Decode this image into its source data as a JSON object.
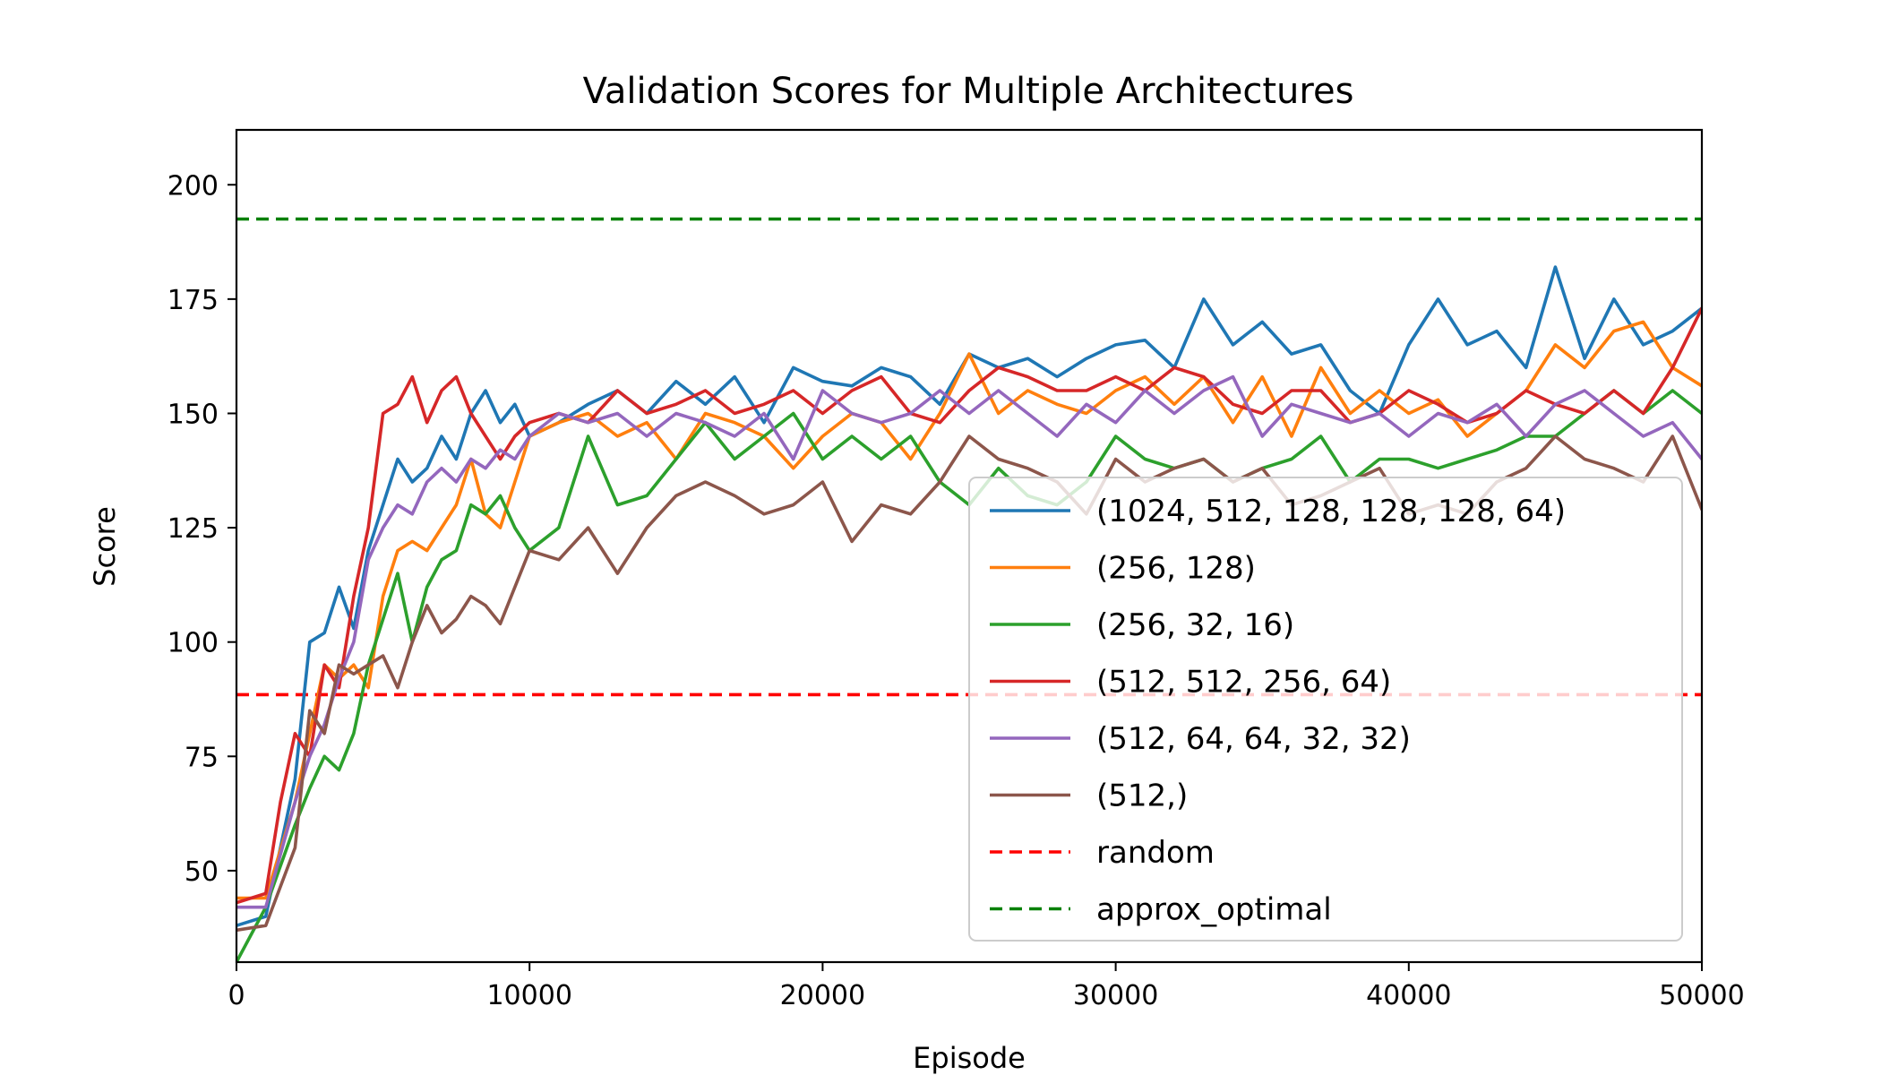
{
  "chart_data": {
    "type": "line",
    "title": "Validation Scores for Multiple Architectures",
    "xlabel": "Episode",
    "ylabel": "Score",
    "xlim": [
      0,
      50000
    ],
    "ylim": [
      30,
      212
    ],
    "xticks": [
      0,
      10000,
      20000,
      30000,
      40000,
      50000
    ],
    "yticks": [
      50,
      75,
      100,
      125,
      150,
      175,
      200
    ],
    "grid": false,
    "legend_position": "center-right",
    "series": [
      {
        "name": "(1024, 512, 128, 128, 128, 64)",
        "color": "#1f77b4",
        "style": "solid",
        "x": [
          0,
          1000,
          2000,
          2500,
          3000,
          3500,
          4000,
          4500,
          5000,
          5500,
          6000,
          6500,
          7000,
          7500,
          8000,
          8500,
          9000,
          9500,
          10000,
          11000,
          12000,
          13000,
          14000,
          15000,
          16000,
          17000,
          18000,
          19000,
          20000,
          21000,
          22000,
          23000,
          24000,
          25000,
          26000,
          27000,
          28000,
          29000,
          30000,
          31000,
          32000,
          33000,
          34000,
          35000,
          36000,
          37000,
          38000,
          39000,
          40000,
          41000,
          42000,
          43000,
          44000,
          45000,
          46000,
          47000,
          48000,
          49000,
          50000
        ],
        "values": [
          38,
          40,
          70,
          100,
          102,
          112,
          103,
          120,
          130,
          140,
          135,
          138,
          145,
          140,
          150,
          155,
          148,
          152,
          145,
          148,
          152,
          155,
          150,
          157,
          152,
          158,
          148,
          160,
          157,
          156,
          160,
          158,
          152,
          163,
          160,
          162,
          158,
          162,
          165,
          166,
          160,
          175,
          165,
          170,
          163,
          165,
          155,
          150,
          165,
          175,
          165,
          168,
          160,
          182,
          162,
          175,
          165,
          168,
          173
        ]
      },
      {
        "name": "(256, 128)",
        "color": "#ff7f0e",
        "style": "solid",
        "x": [
          0,
          1000,
          2000,
          2500,
          3000,
          3500,
          4000,
          4500,
          5000,
          5500,
          6000,
          6500,
          7000,
          7500,
          8000,
          8500,
          9000,
          9500,
          10000,
          11000,
          12000,
          13000,
          14000,
          15000,
          16000,
          17000,
          18000,
          19000,
          20000,
          21000,
          22000,
          23000,
          24000,
          25000,
          26000,
          27000,
          28000,
          29000,
          30000,
          31000,
          32000,
          33000,
          34000,
          35000,
          36000,
          37000,
          38000,
          39000,
          40000,
          41000,
          42000,
          43000,
          44000,
          45000,
          46000,
          47000,
          48000,
          49000,
          50000
        ],
        "values": [
          44,
          44,
          65,
          80,
          95,
          92,
          95,
          90,
          110,
          120,
          122,
          120,
          125,
          130,
          140,
          128,
          125,
          135,
          145,
          148,
          150,
          145,
          148,
          140,
          150,
          148,
          145,
          138,
          145,
          150,
          148,
          140,
          150,
          163,
          150,
          155,
          152,
          150,
          155,
          158,
          152,
          158,
          148,
          158,
          145,
          160,
          150,
          155,
          150,
          153,
          145,
          150,
          155,
          165,
          160,
          168,
          170,
          160,
          156
        ]
      },
      {
        "name": "(256, 32, 16)",
        "color": "#2ca02c",
        "style": "solid",
        "x": [
          0,
          1000,
          2000,
          2500,
          3000,
          3500,
          4000,
          4500,
          5000,
          5500,
          6000,
          6500,
          7000,
          7500,
          8000,
          8500,
          9000,
          9500,
          10000,
          11000,
          12000,
          13000,
          14000,
          15000,
          16000,
          17000,
          18000,
          19000,
          20000,
          21000,
          22000,
          23000,
          24000,
          25000,
          26000,
          27000,
          28000,
          29000,
          30000,
          31000,
          32000,
          33000,
          34000,
          35000,
          36000,
          37000,
          38000,
          39000,
          40000,
          41000,
          42000,
          43000,
          44000,
          45000,
          46000,
          47000,
          48000,
          49000,
          50000
        ],
        "values": [
          30,
          42,
          60,
          68,
          75,
          72,
          80,
          95,
          105,
          115,
          100,
          112,
          118,
          120,
          130,
          128,
          132,
          125,
          120,
          125,
          145,
          130,
          132,
          140,
          148,
          140,
          145,
          150,
          140,
          145,
          140,
          145,
          135,
          130,
          138,
          132,
          130,
          135,
          145,
          140,
          138,
          140,
          135,
          138,
          140,
          145,
          135,
          140,
          140,
          138,
          140,
          142,
          145,
          145,
          150,
          155,
          150,
          155,
          150
        ]
      },
      {
        "name": "(512, 512, 256, 64)",
        "color": "#d62728",
        "style": "solid",
        "x": [
          0,
          1000,
          1500,
          2000,
          2500,
          3000,
          3500,
          4000,
          4500,
          5000,
          5500,
          6000,
          6500,
          7000,
          7500,
          8000,
          8500,
          9000,
          9500,
          10000,
          11000,
          12000,
          13000,
          14000,
          15000,
          16000,
          17000,
          18000,
          19000,
          20000,
          21000,
          22000,
          23000,
          24000,
          25000,
          26000,
          27000,
          28000,
          29000,
          30000,
          31000,
          32000,
          33000,
          34000,
          35000,
          36000,
          37000,
          38000,
          39000,
          40000,
          41000,
          42000,
          43000,
          44000,
          45000,
          46000,
          47000,
          48000,
          49000,
          50000
        ],
        "values": [
          43,
          45,
          65,
          80,
          75,
          95,
          90,
          110,
          125,
          150,
          152,
          158,
          148,
          155,
          158,
          150,
          145,
          140,
          145,
          148,
          150,
          148,
          155,
          150,
          152,
          155,
          150,
          152,
          155,
          150,
          155,
          158,
          150,
          148,
          155,
          160,
          158,
          155,
          155,
          158,
          155,
          160,
          158,
          152,
          150,
          155,
          155,
          148,
          150,
          155,
          152,
          148,
          150,
          155,
          152,
          150,
          155,
          150,
          160,
          173
        ]
      },
      {
        "name": "(512, 64, 64, 32, 32)",
        "color": "#9467bd",
        "style": "solid",
        "x": [
          0,
          1000,
          2000,
          2500,
          3000,
          3500,
          4000,
          4500,
          5000,
          5500,
          6000,
          6500,
          7000,
          7500,
          8000,
          8500,
          9000,
          9500,
          10000,
          11000,
          12000,
          13000,
          14000,
          15000,
          16000,
          17000,
          18000,
          19000,
          20000,
          21000,
          22000,
          23000,
          24000,
          25000,
          26000,
          27000,
          28000,
          29000,
          30000,
          31000,
          32000,
          33000,
          34000,
          35000,
          36000,
          37000,
          38000,
          39000,
          40000,
          41000,
          42000,
          43000,
          44000,
          45000,
          46000,
          47000,
          48000,
          49000,
          50000
        ],
        "values": [
          42,
          42,
          65,
          75,
          82,
          92,
          100,
          118,
          125,
          130,
          128,
          135,
          138,
          135,
          140,
          138,
          142,
          140,
          145,
          150,
          148,
          150,
          145,
          150,
          148,
          145,
          150,
          140,
          155,
          150,
          148,
          150,
          155,
          150,
          155,
          150,
          145,
          152,
          148,
          155,
          150,
          155,
          158,
          145,
          152,
          150,
          148,
          150,
          145,
          150,
          148,
          152,
          145,
          152,
          155,
          150,
          145,
          148,
          140
        ]
      },
      {
        "name": "(512,)",
        "color": "#8c564b",
        "style": "solid",
        "x": [
          0,
          1000,
          2000,
          2500,
          3000,
          3500,
          4000,
          4500,
          5000,
          5500,
          6000,
          6500,
          7000,
          7500,
          8000,
          8500,
          9000,
          9500,
          10000,
          11000,
          12000,
          13000,
          14000,
          15000,
          16000,
          17000,
          18000,
          19000,
          20000,
          21000,
          22000,
          23000,
          24000,
          25000,
          26000,
          27000,
          28000,
          29000,
          30000,
          31000,
          32000,
          33000,
          34000,
          35000,
          36000,
          37000,
          38000,
          39000,
          40000,
          41000,
          42000,
          43000,
          44000,
          45000,
          46000,
          47000,
          48000,
          49000,
          50000
        ],
        "values": [
          37,
          38,
          55,
          85,
          80,
          95,
          93,
          95,
          97,
          90,
          100,
          108,
          102,
          105,
          110,
          108,
          104,
          112,
          120,
          118,
          125,
          115,
          125,
          132,
          135,
          132,
          128,
          130,
          135,
          122,
          130,
          128,
          135,
          145,
          140,
          138,
          135,
          128,
          140,
          135,
          138,
          140,
          135,
          138,
          130,
          132,
          135,
          138,
          128,
          130,
          128,
          135,
          138,
          145,
          140,
          138,
          135,
          145,
          129
        ]
      },
      {
        "name": "random",
        "color": "#ff0000",
        "style": "dashed",
        "x": [
          0,
          50000
        ],
        "values": [
          88.5,
          88.5
        ]
      },
      {
        "name": "approx_optimal",
        "color": "#008000",
        "style": "dashed",
        "x": [
          0,
          50000
        ],
        "values": [
          192.5,
          192.5
        ]
      }
    ]
  }
}
